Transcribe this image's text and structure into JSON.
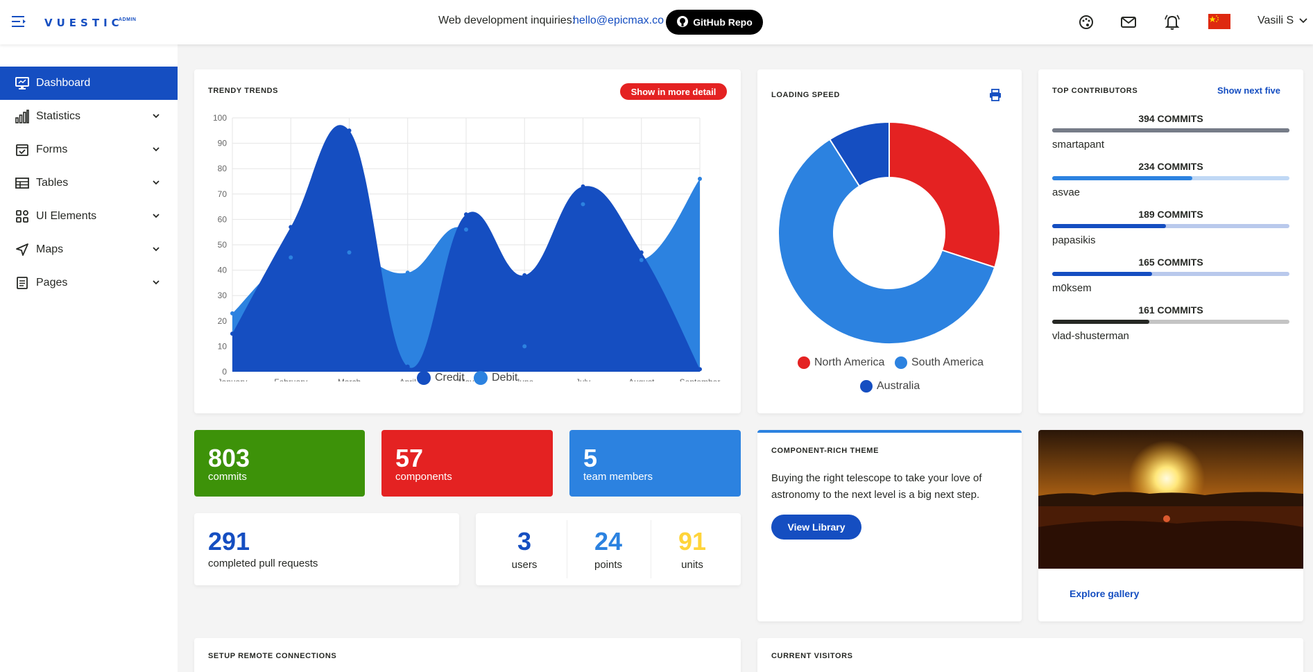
{
  "header": {
    "logo": "VUESTIC",
    "logo_sup": "ADMIN",
    "inquiry_label": "Web development inquiries:",
    "inquiry_email": "hello@epicmax.co",
    "github_label": "GitHub Repo",
    "user_name": "Vasili S",
    "icons": [
      "palette-icon",
      "mail-icon",
      "bell-icon",
      "china-flag-icon"
    ]
  },
  "sidebar": {
    "items": [
      {
        "label": "Dashboard",
        "icon": "monitor-icon",
        "active": true
      },
      {
        "label": "Statistics",
        "icon": "bar-chart-icon"
      },
      {
        "label": "Forms",
        "icon": "form-icon"
      },
      {
        "label": "Tables",
        "icon": "table-icon"
      },
      {
        "label": "UI Elements",
        "icon": "grid-icon"
      },
      {
        "label": "Maps",
        "icon": "navigation-icon"
      },
      {
        "label": "Pages",
        "icon": "page-icon"
      }
    ]
  },
  "trends": {
    "title": "TRENDY TRENDS",
    "button": "Show in more detail"
  },
  "chart_data": [
    {
      "type": "area",
      "categories": [
        "January",
        "February",
        "March",
        "April",
        "May",
        "June",
        "July",
        "August",
        "September"
      ],
      "series": [
        {
          "name": "Credit",
          "color": "#154ec1",
          "values": [
            15,
            57,
            95,
            2,
            62,
            38,
            73,
            47,
            1
          ]
        },
        {
          "name": "Debit",
          "color": "#2c82e0",
          "values": [
            23,
            45,
            47,
            39,
            56,
            10,
            66,
            44,
            76
          ]
        }
      ],
      "ylim": [
        0,
        100
      ],
      "yticks": [
        0,
        10,
        20,
        30,
        40,
        50,
        60,
        70,
        80,
        90,
        100
      ],
      "grid": true,
      "legend": "bottom"
    },
    {
      "type": "pie",
      "title": "LOADING SPEED",
      "categories": [
        "North America",
        "South America",
        "Australia"
      ],
      "values": [
        30,
        61,
        9
      ],
      "colors": [
        "#e42222",
        "#2c82e0",
        "#154ec1"
      ],
      "legend": "bottom"
    }
  ],
  "contributors": {
    "title": "TOP CONTRIBUTORS",
    "link": "Show next five",
    "items": [
      {
        "count": "394 COMMITS",
        "name": "smartapant",
        "fraction": 1.0,
        "color": "#767c88",
        "track": "#767c88"
      },
      {
        "count": "234 COMMITS",
        "name": "asvae",
        "fraction": 0.59,
        "color": "#2c82e0",
        "track": "#c0d8f5"
      },
      {
        "count": "189 COMMITS",
        "name": "papasikis",
        "fraction": 0.48,
        "color": "#154ec1",
        "track": "#b9c9ec"
      },
      {
        "count": "165 COMMITS",
        "name": "m0ksem",
        "fraction": 0.42,
        "color": "#154ec1",
        "track": "#b9c9ec"
      },
      {
        "count": "161 COMMITS",
        "name": "vlad-shusterman",
        "fraction": 0.41,
        "color": "#262824",
        "track": "#c4c4c4"
      }
    ]
  },
  "tiles": [
    {
      "value": "803",
      "label": "commits",
      "color": "#3d9209"
    },
    {
      "value": "57",
      "label": "components",
      "color": "#e42222"
    },
    {
      "value": "5",
      "label": "team members",
      "color": "#2c82e0"
    }
  ],
  "pull_requests": {
    "value": "291",
    "label": "completed pull requests"
  },
  "mini_stats": [
    {
      "value": "3",
      "label": "users",
      "color": "#154ec1"
    },
    {
      "value": "24",
      "label": "points",
      "color": "#2c82e0"
    },
    {
      "value": "91",
      "label": "units",
      "color": "#ffd43a"
    }
  ],
  "theme": {
    "title": "COMPONENT-RICH THEME",
    "text": "Buying the right telescope to take your love of astronomy to the next level is a big next step.",
    "button": "View Library"
  },
  "gallery": {
    "link": "Explore gallery"
  },
  "remote": {
    "title": "SETUP REMOTE CONNECTIONS"
  },
  "visitors": {
    "title": "CURRENT VISITORS"
  }
}
